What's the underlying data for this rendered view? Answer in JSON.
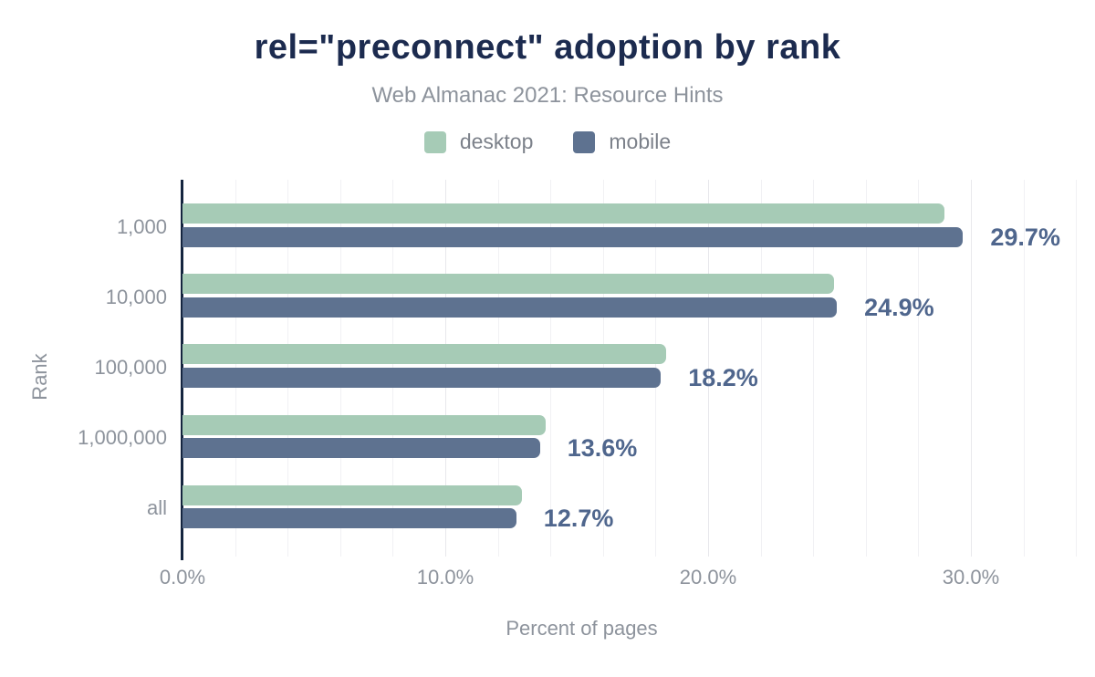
{
  "chart_data": {
    "type": "bar",
    "orientation": "horizontal",
    "title": "rel=\"preconnect\" adoption by rank",
    "subtitle": "Web Almanac 2021: Resource Hints",
    "xlabel": "Percent of pages",
    "ylabel": "Rank",
    "categories": [
      "1,000",
      "10,000",
      "100,000",
      "1,000,000",
      "all"
    ],
    "series": [
      {
        "name": "desktop",
        "color": "#a6cbb6",
        "values": [
          29.0,
          24.8,
          18.4,
          13.8,
          12.9
        ]
      },
      {
        "name": "mobile",
        "color": "#5e7290",
        "values": [
          29.7,
          24.9,
          18.2,
          13.6,
          12.7
        ]
      }
    ],
    "value_labels": [
      "29.7%",
      "24.9%",
      "18.2%",
      "13.6%",
      "12.7%"
    ],
    "x_ticks": [
      {
        "value": 0,
        "label": "0.0%"
      },
      {
        "value": 10,
        "label": "10.0%"
      },
      {
        "value": 20,
        "label": "20.0%"
      },
      {
        "value": 30,
        "label": "30.0%"
      }
    ],
    "xlim": [
      0,
      34.2
    ],
    "gridline_step": 2,
    "grid": true,
    "legend_position": "top",
    "colors": {
      "title": "#1c2b4f",
      "axis_line": "#15253f",
      "value_label": "#4f668d",
      "muted_text": "#8d939c"
    }
  }
}
